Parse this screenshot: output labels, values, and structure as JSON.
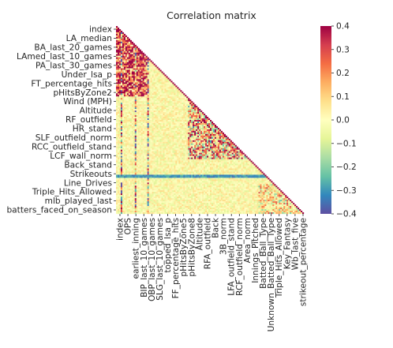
{
  "chart_data": {
    "type": "heatmap",
    "title": "Correlation matrix",
    "mask": "upper-triangle",
    "colormap": "Spectral_r",
    "vmin": -0.4,
    "vmax": 0.4,
    "y_tick_labels": [
      "index",
      "LA_median",
      "BA_last_20_games",
      "LAmed_last_10_games",
      "PA_last_30_games",
      "Under_lsa_p",
      "FT_percentage_hits",
      "pHitsByZone2",
      "Wind (MPH)",
      "Altitude",
      "RF_outfield",
      "HR_stand",
      "SLF_outfield_norm",
      "RCC_outfield_stand",
      "LCF_wall_norm",
      "Back_stand",
      "Strikeouts",
      "Line_Drives",
      "Triple_Hits_Allowed",
      "mlb_played_last",
      "batters_faced_on_season"
    ],
    "x_tick_labels": [
      "index",
      "OPS",
      "earliest_inning",
      "BIP_last_10_games",
      "OBP_last_10_games",
      "SLG_last_10_games",
      "topped_lsa_p",
      "FF_percentage_hits",
      "pHitsByZone5",
      "pHitsByZone8",
      "Altitude",
      "RFA_outfield",
      "Back",
      "3B_norm",
      "LFA_outfield_stand",
      "RCF_outfield_norm",
      "Area_norm",
      "Innings_Pitched",
      "Batted_Ball_Type",
      "Unknown_Batted_Ball_Type",
      "Triple_Hits_Allowed",
      "Key_Fantasy",
      "Wb_last_five",
      "strikeout_percentage"
    ],
    "colorbar_ticks": [
      "0.4",
      "0.3",
      "0.2",
      "0.1",
      "0.0",
      "−0.1",
      "−0.2",
      "−0.3",
      "−0.4"
    ],
    "grid": false
  }
}
